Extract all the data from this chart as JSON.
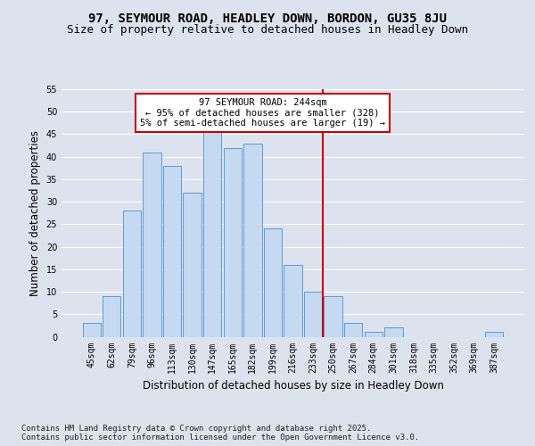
{
  "title": "97, SEYMOUR ROAD, HEADLEY DOWN, BORDON, GU35 8JU",
  "subtitle": "Size of property relative to detached houses in Headley Down",
  "xlabel": "Distribution of detached houses by size in Headley Down",
  "ylabel": "Number of detached properties",
  "categories": [
    "45sqm",
    "62sqm",
    "79sqm",
    "96sqm",
    "113sqm",
    "130sqm",
    "147sqm",
    "165sqm",
    "182sqm",
    "199sqm",
    "216sqm",
    "233sqm",
    "250sqm",
    "267sqm",
    "284sqm",
    "301sqm",
    "318sqm",
    "335sqm",
    "352sqm",
    "369sqm",
    "387sqm"
  ],
  "values": [
    3,
    9,
    28,
    41,
    38,
    32,
    46,
    42,
    43,
    24,
    16,
    10,
    9,
    3,
    1,
    2,
    0,
    0,
    0,
    0,
    1
  ],
  "bar_color": "#c5d9f0",
  "bar_edge_color": "#5b9bd5",
  "vline_x_index": 11.5,
  "annotation_text": "97 SEYMOUR ROAD: 244sqm\n← 95% of detached houses are smaller (328)\n5% of semi-detached houses are larger (19) →",
  "annotation_box_color": "#ffffff",
  "annotation_box_edge_color": "#cc0000",
  "vline_color": "#cc0000",
  "background_color": "#dce3ee",
  "plot_background_color": "#dce3ee",
  "grid_color": "#ffffff",
  "ylim": [
    0,
    55
  ],
  "yticks": [
    0,
    5,
    10,
    15,
    20,
    25,
    30,
    35,
    40,
    45,
    50,
    55
  ],
  "footer_text": "Contains HM Land Registry data © Crown copyright and database right 2025.\nContains public sector information licensed under the Open Government Licence v3.0.",
  "title_fontsize": 10,
  "subtitle_fontsize": 9,
  "axis_label_fontsize": 8.5,
  "tick_fontsize": 7,
  "footer_fontsize": 6.5,
  "ann_fontsize": 7.5
}
